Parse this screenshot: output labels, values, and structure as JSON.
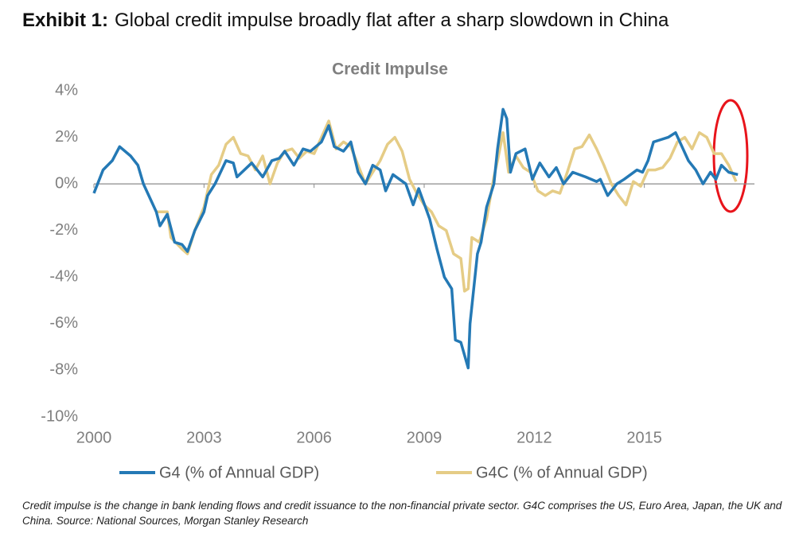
{
  "exhibit": "Exhibit 1:",
  "title": "Global credit impulse broadly flat after a sharp slowdown in China",
  "note": "Credit impulse is the change in bank lending flows and credit issuance to the non-financial private sector. G4C comprises the US, Euro Area, Japan, the UK and China. Source: National Sources, Morgan Stanley Research",
  "chart_data": {
    "type": "line",
    "title": "Credit Impulse",
    "xlim": [
      2000,
      2018
    ],
    "xticks": [
      2000,
      2003,
      2006,
      2009,
      2012,
      2015
    ],
    "ylim": [
      -10,
      4
    ],
    "yticks": [
      {
        "value": 4,
        "label": "4%"
      },
      {
        "value": 2,
        "label": "2%"
      },
      {
        "value": 0,
        "label": "0%"
      },
      {
        "value": -2,
        "label": "-2%"
      },
      {
        "value": -4,
        "label": "-4%"
      },
      {
        "value": -6,
        "label": "-6%"
      },
      {
        "value": -8,
        "label": "-8%"
      },
      {
        "value": -10,
        "label": "-10%"
      }
    ],
    "series": [
      {
        "name": "G4 (% of Annual GDP)",
        "color": "#2479b5",
        "x": [
          2000.0,
          2000.25,
          2000.5,
          2000.7,
          2001.0,
          2001.2,
          2001.35,
          2001.7,
          2001.8,
          2002.0,
          2002.2,
          2002.4,
          2002.55,
          2002.75,
          2003.0,
          2003.1,
          2003.3,
          2003.6,
          2003.8,
          2003.9,
          2004.3,
          2004.6,
          2004.85,
          2005.05,
          2005.2,
          2005.45,
          2005.7,
          2005.9,
          2006.2,
          2006.4,
          2006.55,
          2006.8,
          2007.0,
          2007.2,
          2007.4,
          2007.6,
          2007.8,
          2007.95,
          2008.15,
          2008.5,
          2008.7,
          2008.85,
          2009.15,
          2009.35,
          2009.55,
          2009.75,
          2009.85,
          2010.0,
          2010.2,
          2010.25,
          2010.45,
          2010.55,
          2010.7,
          2010.9,
          2011.0,
          2011.15,
          2011.25,
          2011.35,
          2011.5,
          2011.75,
          2011.95,
          2012.15,
          2012.4,
          2012.6,
          2012.8,
          2013.05,
          2013.4,
          2013.7,
          2013.8,
          2014.0,
          2014.25,
          2014.45,
          2014.8,
          2014.95,
          2015.1,
          2015.25,
          2015.45,
          2015.65,
          2015.85,
          2016.2,
          2016.4,
          2016.6,
          2016.8,
          2016.95,
          2017.1,
          2017.3,
          2017.55
        ],
        "values": [
          -0.4,
          0.6,
          1.0,
          1.6,
          1.2,
          0.8,
          0.0,
          -1.2,
          -1.8,
          -1.3,
          -2.5,
          -2.6,
          -2.9,
          -2.0,
          -1.2,
          -0.5,
          0.0,
          1.0,
          0.9,
          0.3,
          0.9,
          0.3,
          1.0,
          1.1,
          1.4,
          0.8,
          1.5,
          1.4,
          1.8,
          2.5,
          1.6,
          1.4,
          1.8,
          0.5,
          0.0,
          0.8,
          0.6,
          -0.3,
          0.4,
          0.0,
          -0.9,
          -0.2,
          -1.5,
          -2.8,
          -4.0,
          -4.5,
          -6.7,
          -6.8,
          -7.9,
          -6.0,
          -3.0,
          -2.5,
          -1.0,
          0.0,
          1.5,
          3.2,
          2.8,
          0.5,
          1.3,
          1.5,
          0.2,
          0.9,
          0.3,
          0.7,
          0.0,
          0.5,
          0.3,
          0.1,
          0.2,
          -0.5,
          0.0,
          0.2,
          0.6,
          0.5,
          1.0,
          1.8,
          1.9,
          2.0,
          2.2,
          1.0,
          0.6,
          0.0,
          0.5,
          0.2,
          0.8,
          0.5,
          0.4
        ]
      },
      {
        "name": "G4C (% of Annual GDP)",
        "color": "#e5cc86",
        "x": [
          2001.7,
          2002.0,
          2002.1,
          2002.4,
          2002.55,
          2002.75,
          2003.0,
          2003.2,
          2003.4,
          2003.6,
          2003.8,
          2004.0,
          2004.2,
          2004.4,
          2004.6,
          2004.8,
          2005.0,
          2005.2,
          2005.4,
          2005.6,
          2005.8,
          2006.0,
          2006.2,
          2006.4,
          2006.6,
          2006.8,
          2007.0,
          2007.2,
          2007.4,
          2007.6,
          2007.8,
          2008.0,
          2008.2,
          2008.4,
          2008.6,
          2008.8,
          2009.0,
          2009.2,
          2009.4,
          2009.6,
          2009.8,
          2010.0,
          2010.1,
          2010.2,
          2010.3,
          2010.5,
          2010.7,
          2010.9,
          2011.0,
          2011.15,
          2011.3,
          2011.5,
          2011.7,
          2011.9,
          2012.1,
          2012.3,
          2012.5,
          2012.7,
          2012.9,
          2013.1,
          2013.3,
          2013.5,
          2013.7,
          2013.9,
          2014.1,
          2014.3,
          2014.5,
          2014.7,
          2014.9,
          2015.1,
          2015.3,
          2015.5,
          2015.7,
          2015.9,
          2016.1,
          2016.3,
          2016.5,
          2016.7,
          2016.9,
          2017.1,
          2017.3,
          2017.5
        ],
        "values": [
          -1.2,
          -1.2,
          -2.3,
          -2.8,
          -3.0,
          -2.0,
          -1.0,
          0.4,
          0.8,
          1.7,
          2.0,
          1.3,
          1.2,
          0.6,
          1.2,
          0.0,
          0.9,
          1.4,
          1.5,
          1.1,
          1.4,
          1.3,
          2.0,
          2.7,
          1.5,
          1.8,
          1.6,
          0.8,
          0.0,
          0.5,
          1.0,
          1.7,
          2.0,
          1.4,
          0.2,
          -0.4,
          -0.9,
          -1.2,
          -1.8,
          -2.0,
          -3.0,
          -3.2,
          -4.6,
          -4.5,
          -2.3,
          -2.5,
          -1.5,
          0.3,
          1.0,
          2.2,
          0.5,
          1.2,
          0.7,
          0.5,
          -0.3,
          -0.5,
          -0.3,
          -0.4,
          0.5,
          1.5,
          1.6,
          2.1,
          1.5,
          0.8,
          0.0,
          -0.5,
          -0.9,
          0.1,
          -0.1,
          0.6,
          0.6,
          0.7,
          1.1,
          1.8,
          2.0,
          1.5,
          2.2,
          2.0,
          1.3,
          1.3,
          0.8,
          0.1
        ]
      }
    ]
  }
}
